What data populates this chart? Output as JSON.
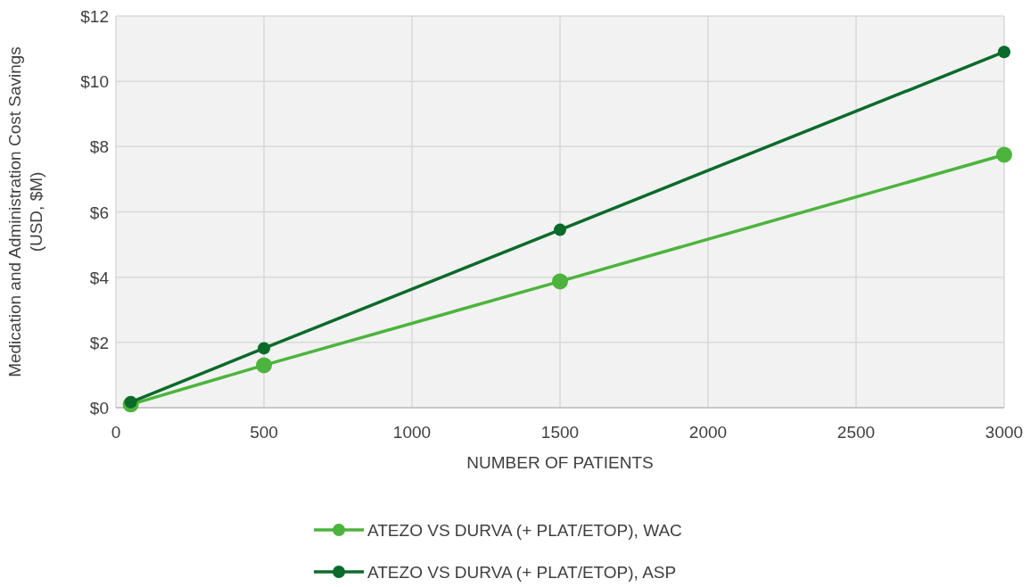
{
  "chart_data": {
    "type": "line",
    "xlabel": "NUMBER OF PATIENTS",
    "ylabel": "Medication and Administration Cost Savings\n(USD, $M)",
    "x": [
      50,
      500,
      1500,
      3000
    ],
    "series": [
      {
        "name": "ATEZO VS DURVA (+ PLAT/ETOP), WAC",
        "color": "#4cb43c",
        "values": [
          0.1,
          1.3,
          3.87,
          7.75
        ]
      },
      {
        "name": "ATEZO VS DURVA (+ PLAT/ETOP), ASP",
        "color": "#0a6a2a",
        "values": [
          0.17,
          1.82,
          5.45,
          10.9
        ]
      }
    ],
    "xlim": [
      0,
      3000
    ],
    "xticks": [
      0,
      500,
      1000,
      1500,
      2000,
      2500,
      3000
    ],
    "ylim": [
      0,
      12
    ],
    "yticks": [
      {
        "value": 0,
        "label": "$0"
      },
      {
        "value": 2,
        "label": "$2"
      },
      {
        "value": 4,
        "label": "$4"
      },
      {
        "value": 6,
        "label": "$6"
      },
      {
        "value": 8,
        "label": "$8"
      },
      {
        "value": 10,
        "label": "$10"
      },
      {
        "value": 12,
        "label": "$12"
      }
    ],
    "grid": true,
    "legend": "bottom",
    "marker": "circle",
    "line_style": "solid"
  }
}
